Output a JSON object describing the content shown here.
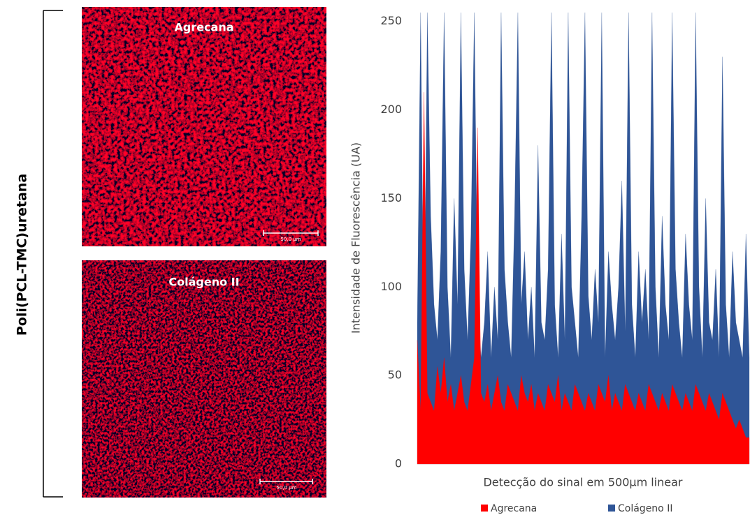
{
  "side_label": "Poli(PCL-TMC)uretana",
  "panels": [
    {
      "title": "Agrecana",
      "scale_bar": "50,0 µm"
    },
    {
      "title": "Colágeno II",
      "scale_bar": "50,0 µm"
    }
  ],
  "chart_data": {
    "type": "area",
    "y_label": "Intensidade de Fluorescência (UA)",
    "x_label": "Detecção do sinal em 500µm linear",
    "ylim": [
      0,
      255
    ],
    "yticks": [
      0,
      50,
      100,
      150,
      200,
      250
    ],
    "series": [
      {
        "name": "Colágeno II",
        "color": "#2f5597",
        "values": [
          80,
          255,
          60,
          255,
          140,
          90,
          70,
          120,
          255,
          100,
          60,
          150,
          90,
          255,
          110,
          70,
          130,
          255,
          95,
          60,
          80,
          120,
          60,
          100,
          70,
          255,
          110,
          80,
          60,
          140,
          255,
          90,
          120,
          70,
          100,
          60,
          180,
          80,
          70,
          110,
          255,
          90,
          60,
          130,
          70,
          255,
          100,
          80,
          60,
          140,
          255,
          95,
          70,
          110,
          80,
          255,
          60,
          120,
          90,
          70,
          100,
          160,
          75,
          255,
          90,
          60,
          120,
          80,
          110,
          70,
          255,
          100,
          60,
          140,
          90,
          70,
          255,
          110,
          80,
          60,
          130,
          90,
          70,
          255,
          100,
          60,
          150,
          80,
          70,
          110,
          60,
          230,
          90,
          60,
          120,
          80,
          70,
          60,
          130,
          60
        ]
      },
      {
        "name": "Agrecana",
        "color": "#ff0000",
        "values": [
          70,
          30,
          210,
          40,
          35,
          30,
          55,
          40,
          60,
          35,
          45,
          30,
          40,
          50,
          35,
          30,
          45,
          60,
          190,
          40,
          35,
          45,
          30,
          40,
          50,
          35,
          30,
          45,
          40,
          35,
          30,
          50,
          40,
          35,
          45,
          30,
          40,
          35,
          30,
          45,
          40,
          35,
          50,
          30,
          40,
          35,
          30,
          45,
          40,
          35,
          30,
          40,
          35,
          30,
          45,
          40,
          35,
          50,
          30,
          40,
          35,
          30,
          45,
          40,
          35,
          30,
          40,
          35,
          30,
          45,
          40,
          35,
          30,
          40,
          35,
          30,
          45,
          40,
          35,
          30,
          40,
          35,
          30,
          45,
          40,
          35,
          30,
          40,
          35,
          30,
          25,
          40,
          35,
          30,
          25,
          20,
          25,
          20,
          15,
          15
        ]
      }
    ]
  }
}
